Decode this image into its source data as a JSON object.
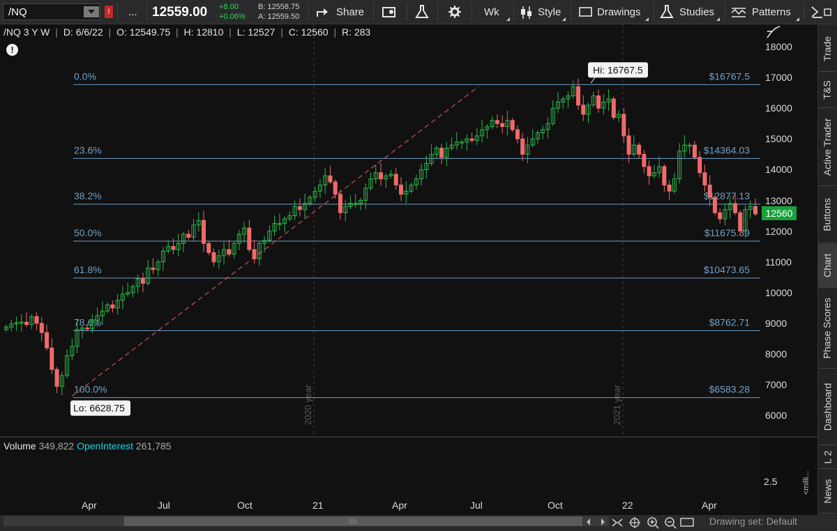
{
  "toolbar": {
    "symbol": "/NQ",
    "alert": "!",
    "more": "...",
    "last_price": "12559.00",
    "change_abs": "+8.00",
    "change_pct": "+0.06%",
    "bid": "B: 12558.75",
    "ask": "A: 12559.50",
    "share": "Share",
    "aggregation": "Wk",
    "style": "Style",
    "drawings": "Drawings",
    "studies": "Studies",
    "patterns": "Patterns"
  },
  "header": {
    "symbol": "/NQ 3 Y W",
    "date": "D: 6/6/22",
    "open": "O: 12549.75",
    "high": "H: 12810",
    "low": "L: 12527",
    "close": "C: 12560",
    "range": "R: 283"
  },
  "chart": {
    "info_icon": "!",
    "y_ticks": [
      "18000",
      "17000",
      "16000",
      "15000",
      "14000",
      "13000",
      "12000",
      "11000",
      "10000",
      "9000",
      "8000",
      "7000",
      "6000"
    ],
    "last_price_tag": "12560",
    "fib_levels": [
      {
        "pct": "0.0%",
        "price": "$16767.5"
      },
      {
        "pct": "23.6%",
        "price": "$14364.03"
      },
      {
        "pct": "38.2%",
        "price": "$12877.13"
      },
      {
        "pct": "50.0%",
        "price": "$11675.39"
      },
      {
        "pct": "61.8%",
        "price": "$10473.65"
      },
      {
        "pct": "78.6%",
        "price": "$8762.71"
      },
      {
        "pct": "100.0%",
        "price": "$6583.28"
      }
    ],
    "hi_label": "Hi: 16767.5",
    "lo_label": "Lo: 6628.75",
    "year_markers": [
      "2020 year",
      "2021 year"
    ],
    "x_ticks": [
      "Apr",
      "Jul",
      "Oct",
      "21",
      "Apr",
      "Jul",
      "Oct",
      "22",
      "Apr"
    ],
    "colors": {
      "up": "#2db84a",
      "down": "#f06a6a",
      "fib": "#6fa0c8",
      "volume": "#2e86c1",
      "trend": "#c0504d"
    }
  },
  "volume": {
    "label": "Volume",
    "value": "349,822",
    "oi_label": "OpenInterest",
    "oi_value": "261,785",
    "tick": "2.5",
    "unit": "<milli..."
  },
  "rail": [
    "Trade",
    "T&S",
    "Active Trader",
    "Buttons",
    "Chart",
    "Phase Scores",
    "Dashboard",
    "L 2",
    "News"
  ],
  "status": {
    "drawing_set": "Drawing set: Default"
  }
}
